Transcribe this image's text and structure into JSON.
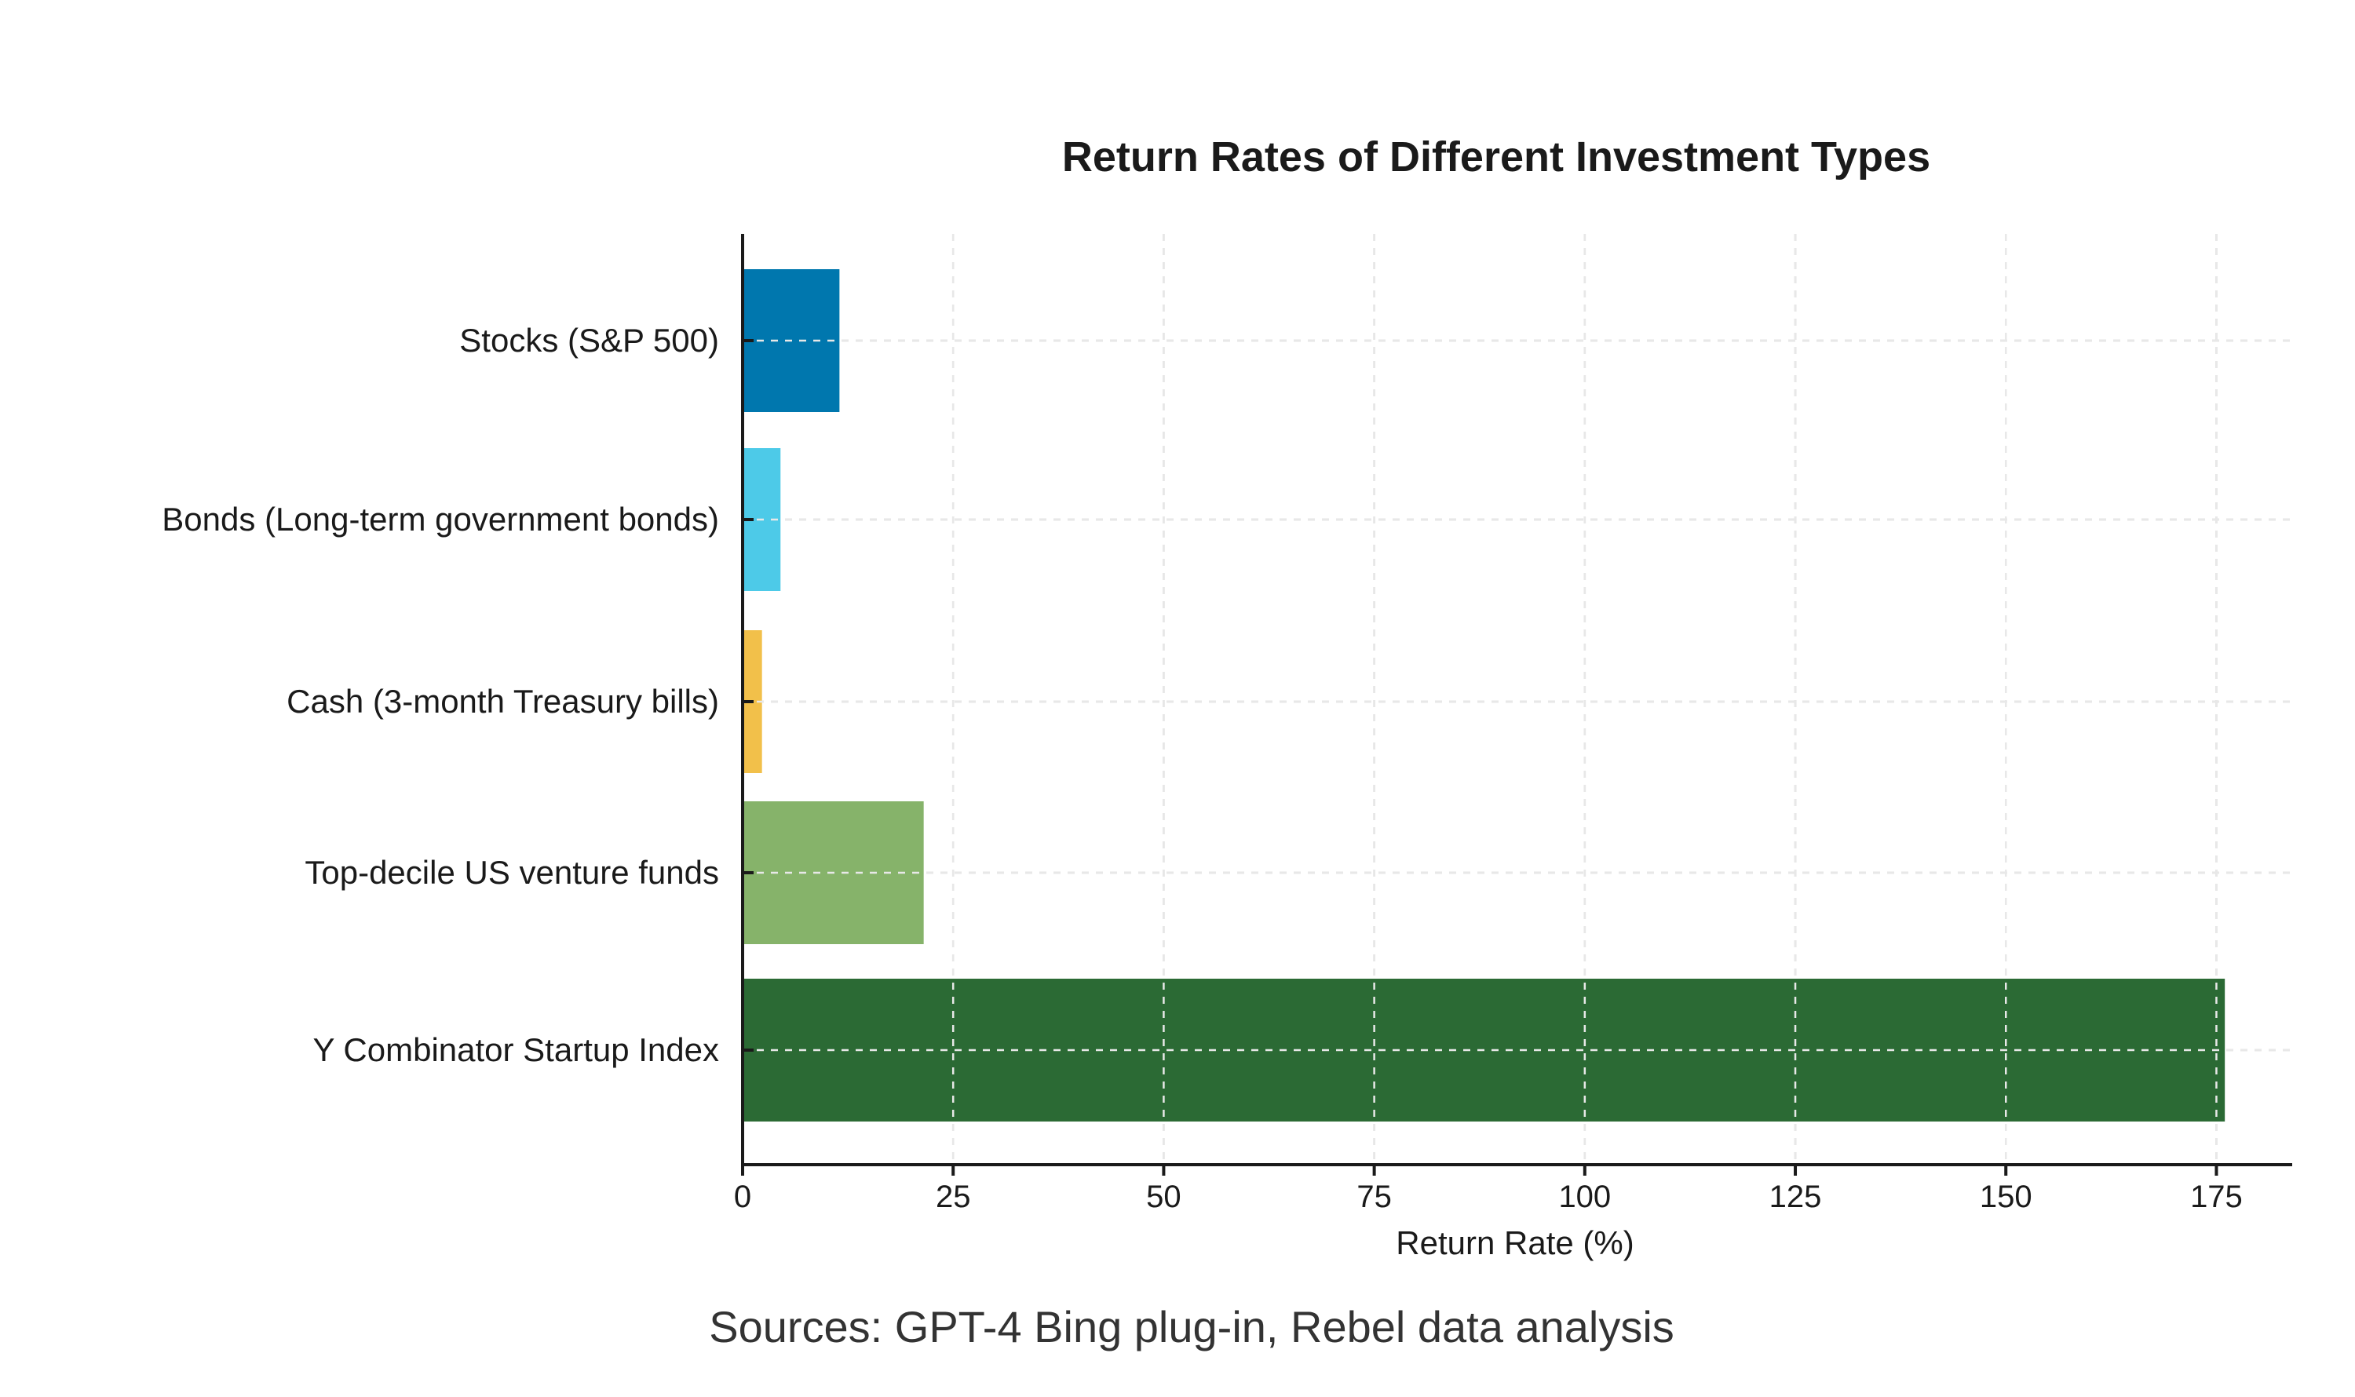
{
  "chart_data": {
    "type": "bar",
    "orientation": "horizontal",
    "title": "Return Rates of Different Investment Types",
    "xlabel": "Return Rate (%)",
    "ylabel": "",
    "categories": [
      "Stocks (S&P 500)",
      "Bonds (Long-term government bonds)",
      "Cash (3-month Treasury bills)",
      "Top-decile US venture funds",
      "Y Combinator Startup Index"
    ],
    "values": [
      11.5,
      4.5,
      2.3,
      21.5,
      176
    ],
    "colors": [
      "#0077ae",
      "#4dcae8",
      "#f2c04a",
      "#86b36a",
      "#2b6a34"
    ],
    "xlim": [
      0,
      184
    ],
    "xticks": [
      0,
      25,
      50,
      75,
      100,
      125,
      150,
      175
    ],
    "xtick_labels": [
      "0",
      "25",
      "50",
      "75",
      "100",
      "125",
      "150",
      "175"
    ],
    "grid": true,
    "grid_style": "dashed"
  },
  "sources": "Sources: GPT-4 Bing plug-in, Rebel data analysis"
}
